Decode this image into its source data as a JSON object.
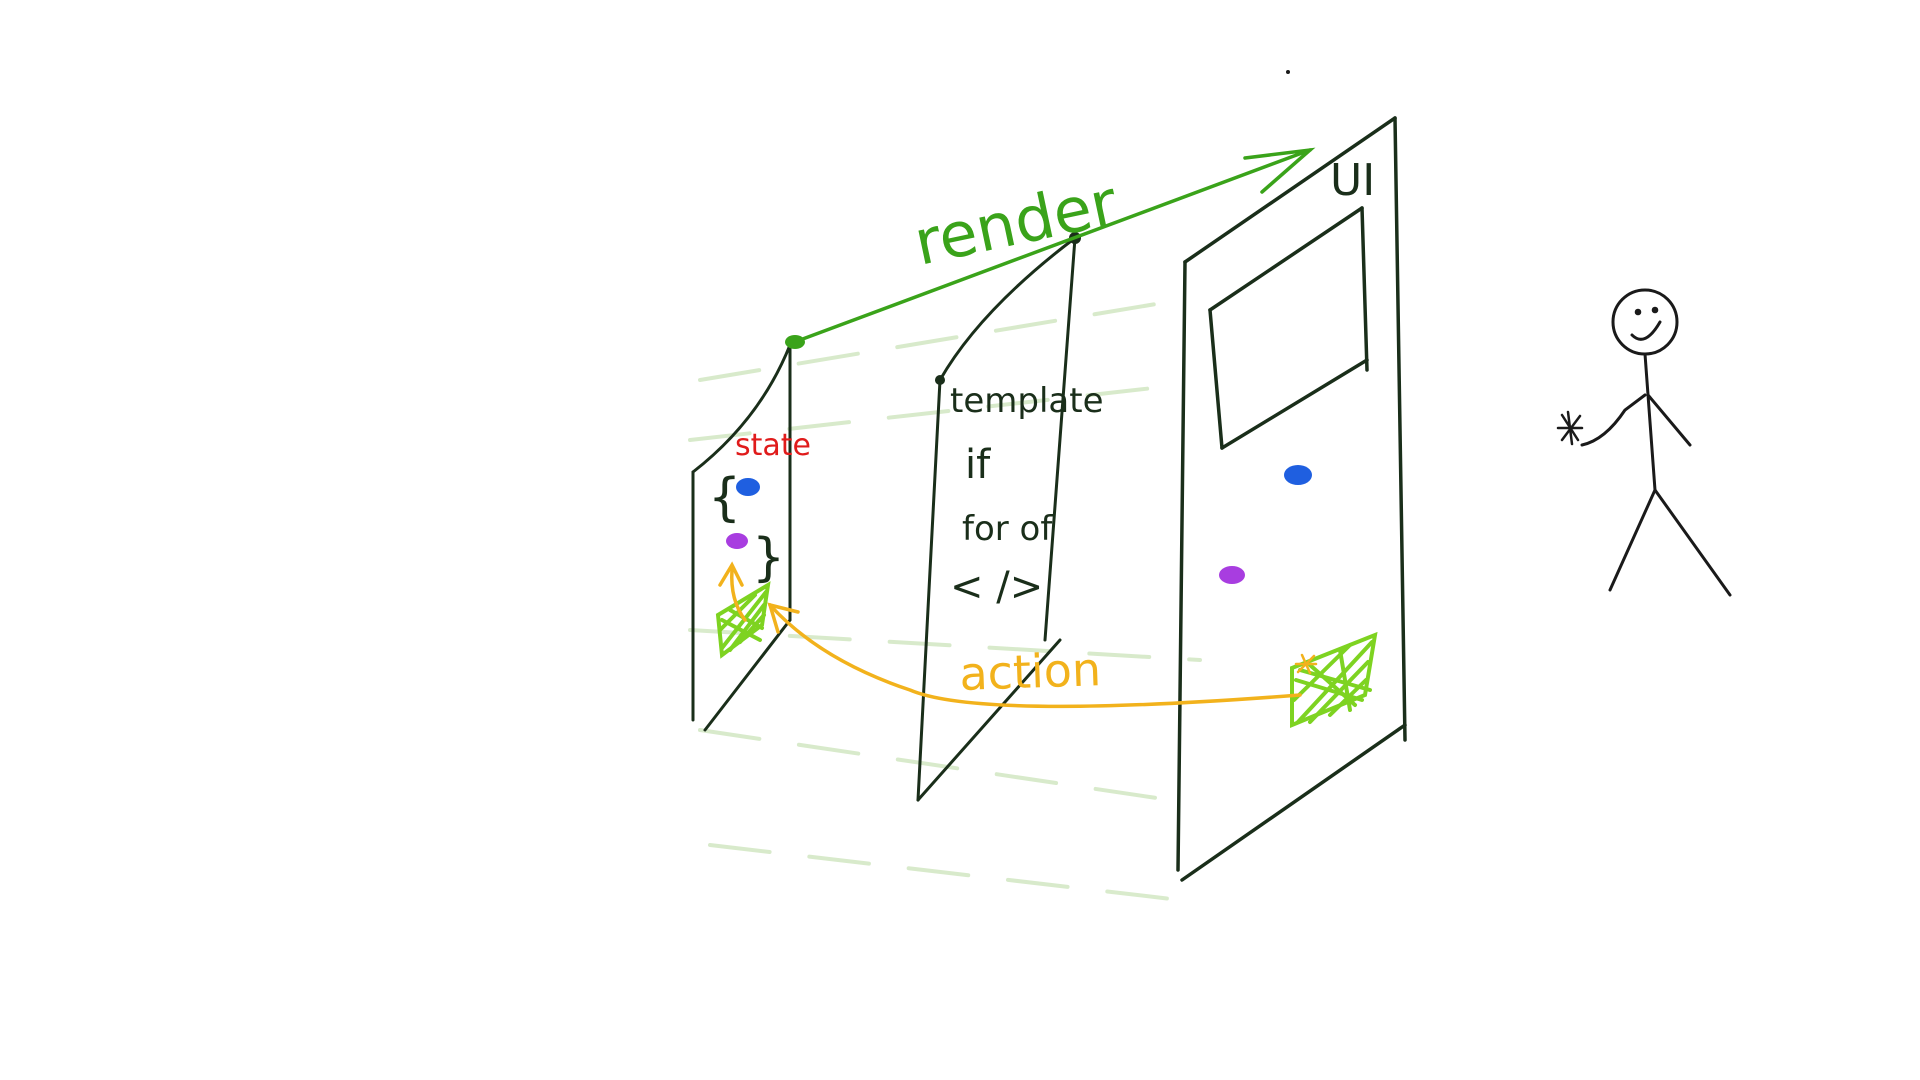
{
  "labels": {
    "render": "render",
    "ui": "UI",
    "state": "state",
    "action": "action"
  },
  "template_lines": [
    "template",
    "if",
    "for of",
    "< />"
  ],
  "colors": {
    "ink": "#1a2e1a",
    "render_arrow": "#3aa31a",
    "action_arrow": "#f2b21c",
    "state_label": "#e01b1b",
    "blue_dot": "#1f5fe0",
    "purple_dot": "#a83de0",
    "green_patch": "#7ed321",
    "guide_lines": "#cfe6bf"
  },
  "icons": [
    "stick-figure-user-icon",
    "click-sparkle-icon"
  ]
}
